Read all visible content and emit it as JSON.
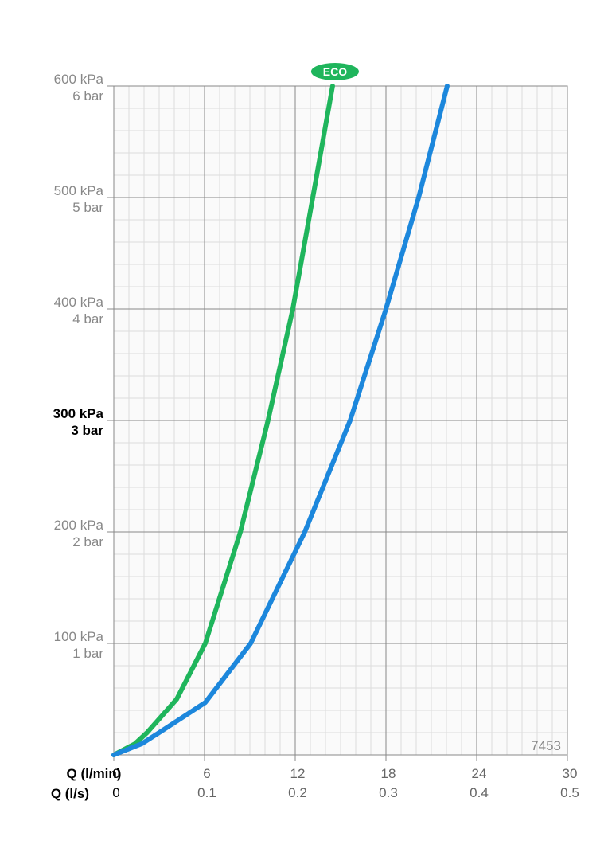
{
  "chart_data": {
    "type": "line",
    "xlabel": "Q (l/min)",
    "x2label": "Q (l/s)",
    "xlim": [
      0,
      30
    ],
    "xticks": [
      0,
      6,
      12,
      18,
      24,
      30
    ],
    "x2lim": [
      0,
      0.5
    ],
    "x2ticks": [
      0,
      0.1,
      0.2,
      0.3,
      0.4,
      0.5
    ],
    "ylim": [
      0,
      600
    ],
    "yticks": [
      {
        "value": 100,
        "label": "100 kPa"
      },
      {
        "value": 200,
        "label": "200 kPa"
      },
      {
        "value": 300,
        "label": "300 kPa"
      },
      {
        "value": 400,
        "label": "400 kPa"
      },
      {
        "value": 500,
        "label": "500 kPa"
      },
      {
        "value": 600,
        "label": "600 kPa"
      }
    ],
    "y2lim": [
      0,
      6
    ],
    "y2ticks": [
      {
        "value": 1,
        "label": "1 bar"
      },
      {
        "value": 2,
        "label": "2 bar"
      },
      {
        "value": 3,
        "label": "3 bar"
      },
      {
        "value": 4,
        "label": "4 bar"
      },
      {
        "value": 5,
        "label": "5 bar"
      },
      {
        "value": 6,
        "label": "6 bar"
      }
    ],
    "highlight_ytick": 300,
    "grid": true,
    "series": [
      {
        "name": "ECO",
        "color": "#1fb55c",
        "x": [
          0,
          1.4,
          2.2,
          4.16,
          6.05,
          8.37,
          10.2,
          11.84,
          13.16,
          14.47
        ],
        "values": [
          0,
          10,
          20,
          50,
          100,
          200,
          300,
          400,
          500,
          600
        ]
      },
      {
        "color": "#1c87dc",
        "x": [
          0,
          1.85,
          3.0,
          6.05,
          9.05,
          12.63,
          15.63,
          18.0,
          20.16,
          22.05
        ],
        "values": [
          0,
          10,
          20,
          47,
          100,
          200,
          300,
          400,
          500,
          600
        ]
      }
    ],
    "annotation": "7453"
  }
}
